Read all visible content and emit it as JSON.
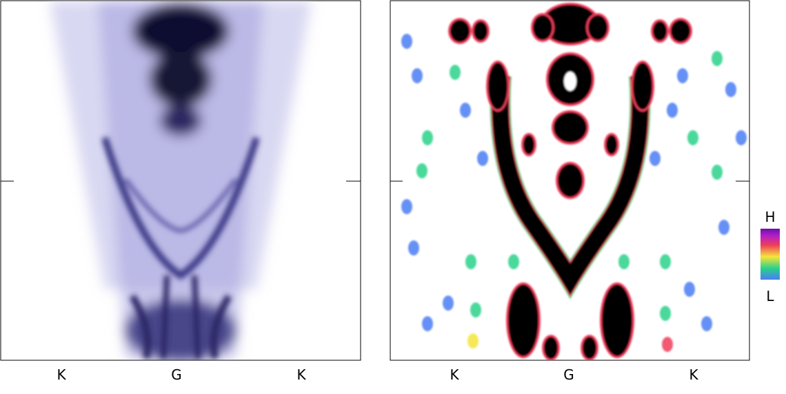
{
  "chart_data": [
    {
      "type": "heatmap",
      "title": "",
      "xlabel": "",
      "ylabel": "",
      "x_ticks": [
        "K",
        "G",
        "K"
      ],
      "colormap": "white-to-indigo",
      "colors": {
        "low": "#ffffff",
        "high": "#0a0a28"
      }
    },
    {
      "type": "heatmap",
      "title": "",
      "xlabel": "",
      "ylabel": "",
      "x_ticks": [
        "K",
        "G",
        "K"
      ],
      "colormap": "white-blue-green-yellow-red-magenta-black",
      "colors": {
        "low": "#ffffff",
        "high": "#000000"
      }
    }
  ],
  "colorbar": {
    "high_label": "H",
    "low_label": "L",
    "stops": [
      "#4a7df5",
      "#29d18a",
      "#f5e53b",
      "#ef3d5a",
      "#b020c8",
      "#6e10a8"
    ]
  }
}
